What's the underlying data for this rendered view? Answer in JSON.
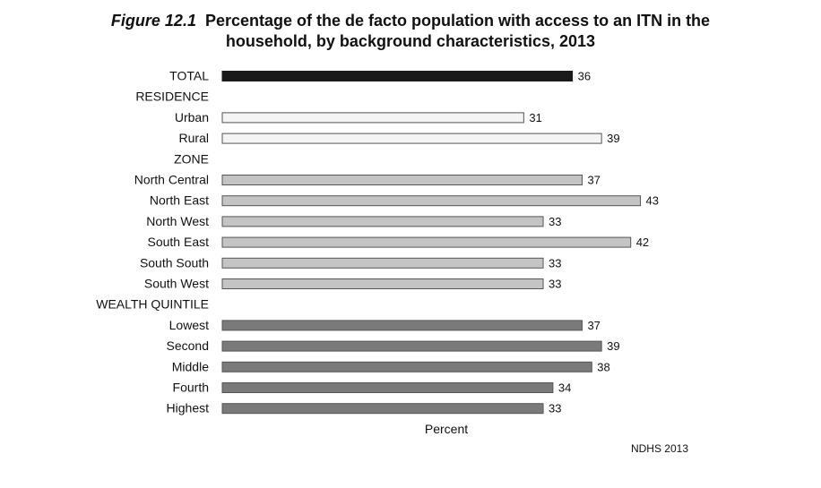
{
  "title": {
    "figure_label": "Figure 12.1",
    "line1": "Percentage of the de facto population with access to an ITN in the",
    "line2": "household, by background characteristics, 2013"
  },
  "source": "NDHS 2013",
  "chart_data": {
    "type": "bar",
    "orientation": "horizontal",
    "title": "Percentage of the de facto population with access to an ITN in the household, by background characteristics, 2013",
    "xlabel": "Percent",
    "ylabel": "",
    "xlim": [
      0,
      45
    ],
    "grid": false,
    "legend": "none",
    "categories": [
      "TOTAL",
      "RESIDENCE",
      "Urban",
      "Rural",
      "ZONE",
      "North Central",
      "North East",
      "North West",
      "South East",
      "South South",
      "South West",
      "WEALTH QUINTILE",
      "Lowest",
      "Second",
      "Middle",
      "Fourth",
      "Highest"
    ],
    "values": [
      36,
      null,
      31,
      39,
      null,
      37,
      43,
      33,
      42,
      33,
      33,
      null,
      37,
      39,
      38,
      34,
      33
    ],
    "groups": [
      "total",
      "header",
      "residence",
      "residence",
      "header",
      "zone",
      "zone",
      "zone",
      "zone",
      "zone",
      "zone",
      "header",
      "wealth",
      "wealth",
      "wealth",
      "wealth",
      "wealth"
    ],
    "colors": {
      "total": "#1a1a1a",
      "residence": "#f4f4f4",
      "zone": "#c4c4c4",
      "wealth": "#7a7a7a",
      "border": "#555555"
    }
  }
}
